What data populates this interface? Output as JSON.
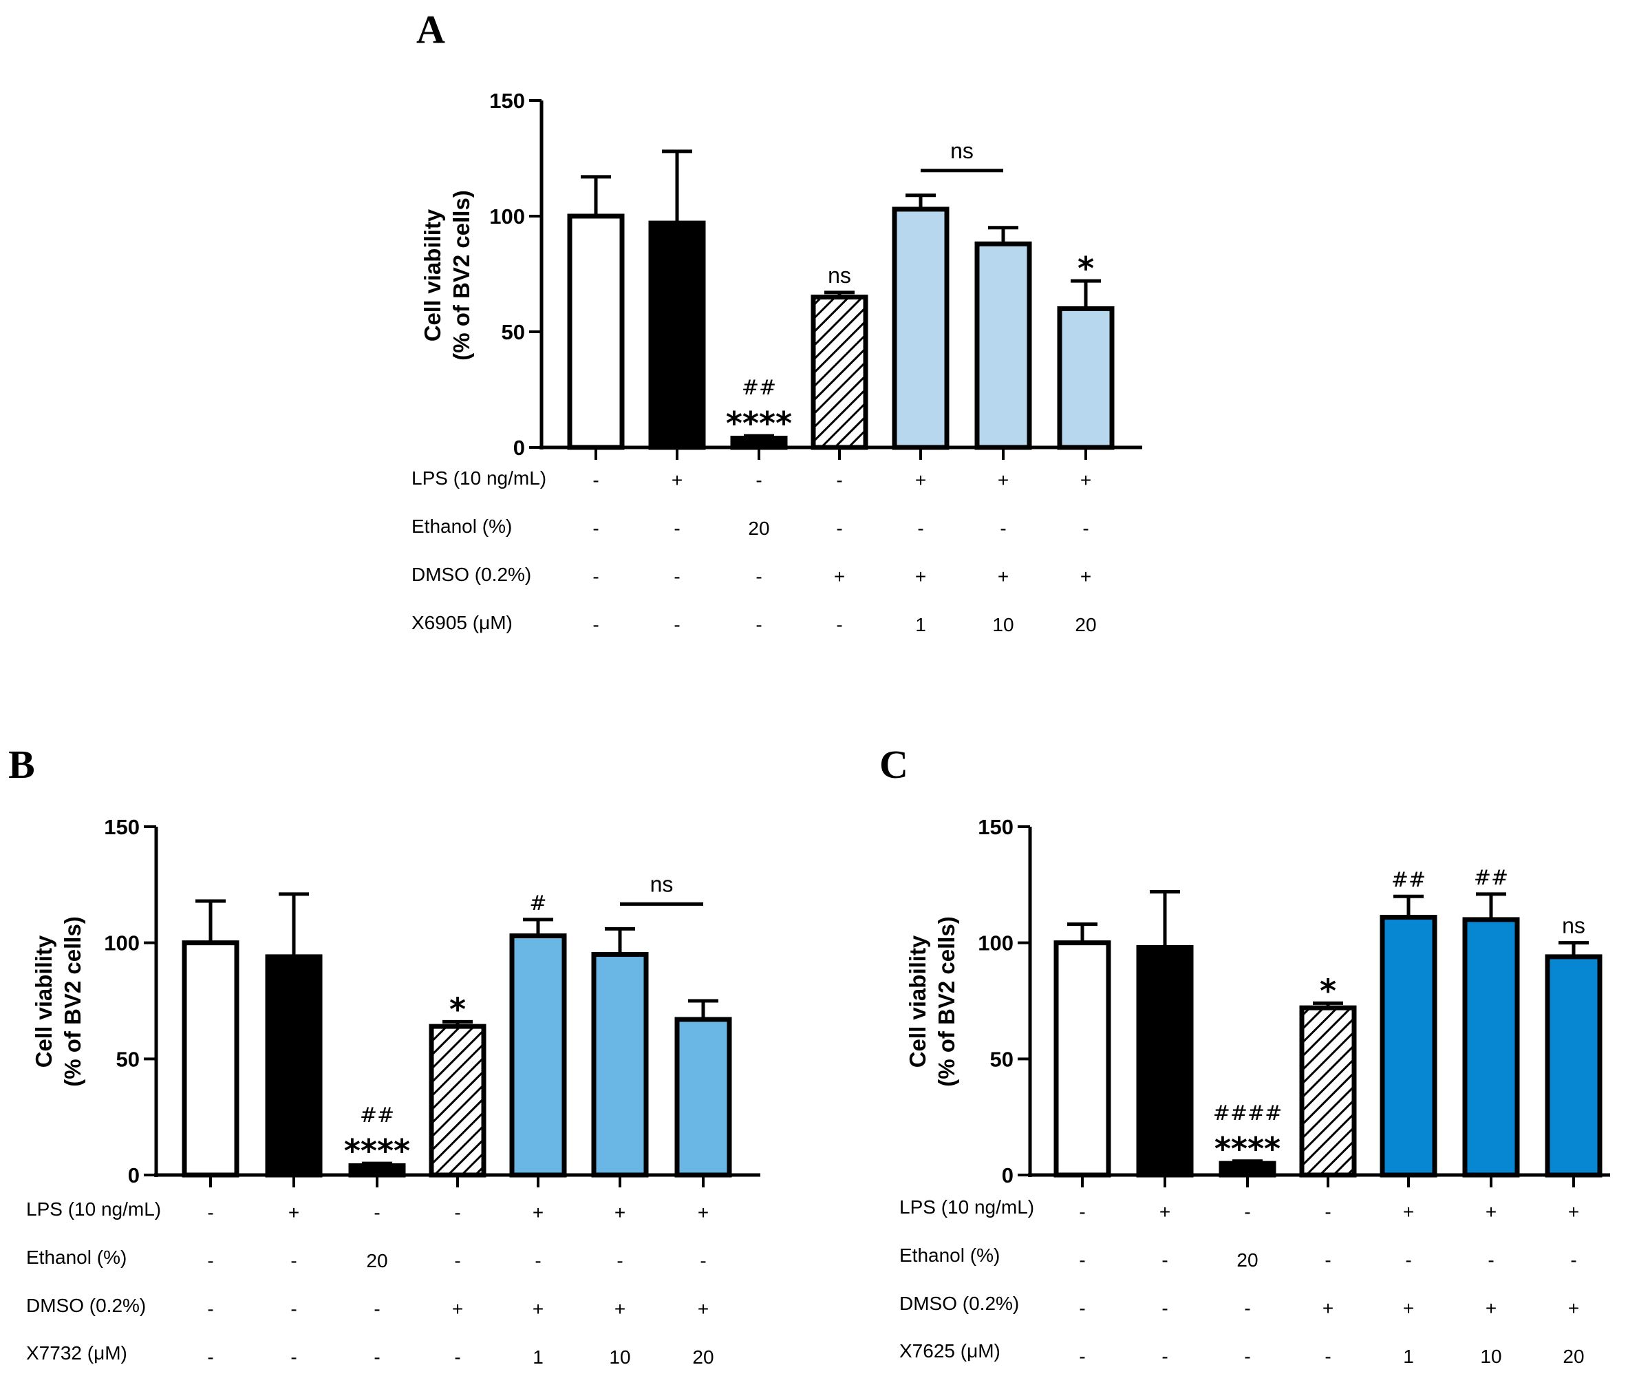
{
  "colors": {
    "axis": "#000000",
    "light_blue_a": "#b7d7ef",
    "blue_b": "#6ab6e4",
    "blue_c": "#0786d2"
  },
  "chart_data": [
    {
      "type": "bar",
      "panel": "A",
      "ylabel_line1": "Cell viability",
      "ylabel_line2": "(% of BV2 cells)",
      "ylim": [
        0,
        150
      ],
      "yticks": [
        "0",
        "50",
        "100",
        "150"
      ],
      "values": [
        100,
        97,
        4,
        65,
        103,
        88,
        60
      ],
      "errors": [
        17,
        31,
        1,
        2,
        6,
        7,
        12
      ],
      "fills": [
        "white",
        "black",
        "black",
        "hatch",
        "#b7d7ef",
        "#b7d7ef",
        "#b7d7ef"
      ],
      "annotations": [
        {
          "bar": 2,
          "lines": [
            "##",
            "****"
          ]
        },
        {
          "bar": 3,
          "lines": [
            "ns"
          ]
        },
        {
          "bar": 6,
          "lines": [
            "*"
          ]
        }
      ],
      "bracket": {
        "from": 4,
        "to": 5,
        "label": "ns"
      },
      "table": [
        {
          "label": "LPS (10 ng/mL)",
          "cells": [
            "-",
            "+",
            "-",
            "-",
            "+",
            "+",
            "+"
          ]
        },
        {
          "label": "Ethanol (%)",
          "cells": [
            "-",
            "-",
            "20",
            "-",
            "-",
            "-",
            "-"
          ]
        },
        {
          "label": "DMSO (0.2%)",
          "cells": [
            "-",
            "-",
            "-",
            "+",
            "+",
            "+",
            "+"
          ]
        },
        {
          "label": "X6905 (μM)",
          "cells": [
            "-",
            "-",
            "-",
            "-",
            "1",
            "10",
            "20"
          ]
        }
      ]
    },
    {
      "type": "bar",
      "panel": "B",
      "ylabel_line1": "Cell viability",
      "ylabel_line2": "(% of BV2 cells)",
      "ylim": [
        0,
        150
      ],
      "yticks": [
        "0",
        "50",
        "100",
        "150"
      ],
      "values": [
        100,
        94,
        4,
        64,
        103,
        95,
        67
      ],
      "errors": [
        18,
        27,
        1,
        2,
        7,
        11,
        8
      ],
      "fills": [
        "white",
        "black",
        "black",
        "hatch",
        "#6ab6e4",
        "#6ab6e4",
        "#6ab6e4"
      ],
      "annotations": [
        {
          "bar": 2,
          "lines": [
            "##",
            "****"
          ]
        },
        {
          "bar": 3,
          "lines": [
            "*"
          ]
        },
        {
          "bar": 4,
          "lines": [
            "#"
          ]
        }
      ],
      "bracket": {
        "from": 5,
        "to": 6,
        "label": "ns"
      },
      "table": [
        {
          "label": "LPS (10 ng/mL)",
          "cells": [
            "-",
            "+",
            "-",
            "-",
            "+",
            "+",
            "+"
          ]
        },
        {
          "label": "Ethanol (%)",
          "cells": [
            "-",
            "-",
            "20",
            "-",
            "-",
            "-",
            "-"
          ]
        },
        {
          "label": "DMSO (0.2%)",
          "cells": [
            "-",
            "-",
            "-",
            "+",
            "+",
            "+",
            "+"
          ]
        },
        {
          "label": "X7732 (μM)",
          "cells": [
            "-",
            "-",
            "-",
            "-",
            "1",
            "10",
            "20"
          ]
        }
      ]
    },
    {
      "type": "bar",
      "panel": "C",
      "ylabel_line1": "Cell viability",
      "ylabel_line2": "(% of BV2 cells)",
      "ylim": [
        0,
        150
      ],
      "yticks": [
        "0",
        "50",
        "100",
        "150"
      ],
      "values": [
        100,
        98,
        5,
        72,
        111,
        110,
        94
      ],
      "errors": [
        8,
        24,
        1,
        2,
        9,
        11,
        6
      ],
      "fills": [
        "white",
        "black",
        "black",
        "hatch",
        "#0786d2",
        "#0786d2",
        "#0786d2"
      ],
      "annotations": [
        {
          "bar": 2,
          "lines": [
            "####",
            "****"
          ]
        },
        {
          "bar": 3,
          "lines": [
            "*"
          ]
        },
        {
          "bar": 4,
          "lines": [
            "##"
          ]
        },
        {
          "bar": 5,
          "lines": [
            "##"
          ]
        },
        {
          "bar": 6,
          "lines": [
            "ns"
          ]
        }
      ],
      "bracket": null,
      "table": [
        {
          "label": "LPS (10 ng/mL)",
          "cells": [
            "-",
            "+",
            "-",
            "-",
            "+",
            "+",
            "+"
          ]
        },
        {
          "label": "Ethanol (%)",
          "cells": [
            "-",
            "-",
            "20",
            "-",
            "-",
            "-",
            "-"
          ]
        },
        {
          "label": "DMSO (0.2%)",
          "cells": [
            "-",
            "-",
            "-",
            "+",
            "+",
            "+",
            "+"
          ]
        },
        {
          "label": "X7625 (μM)",
          "cells": [
            "-",
            "-",
            "-",
            "-",
            "1",
            "10",
            "20"
          ]
        }
      ]
    }
  ]
}
